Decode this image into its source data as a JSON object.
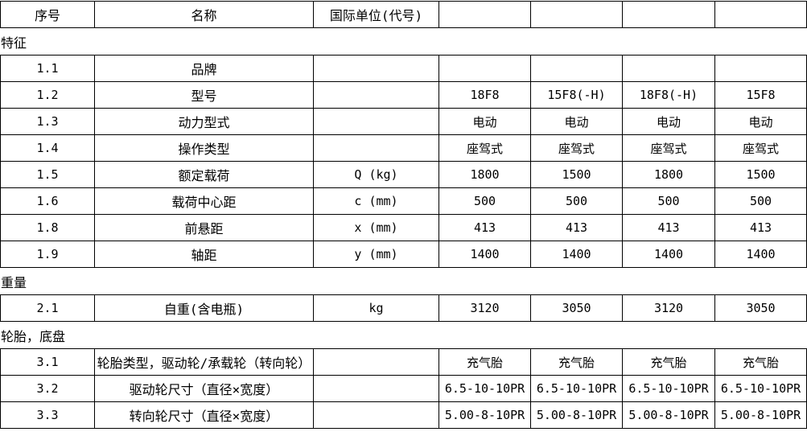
{
  "page": {
    "background_color": "#ffffff",
    "border_color": "#000000",
    "text_color": "#000000"
  },
  "header_table": {
    "columns": [
      "序号",
      "名称",
      "国际单位(代号)",
      "",
      "",
      "",
      ""
    ]
  },
  "sections": [
    {
      "label": "特征",
      "rows": [
        [
          "1.1",
          "品牌",
          "",
          "",
          "",
          "",
          ""
        ],
        [
          "1.2",
          "型号",
          "",
          "18F8",
          "15F8(-H)",
          "18F8(-H)",
          "15F8"
        ],
        [
          "1.3",
          "动力型式",
          "",
          "电动",
          "电动",
          "电动",
          "电动"
        ],
        [
          "1.4",
          "操作类型",
          "",
          "座驾式",
          "座驾式",
          "座驾式",
          "座驾式"
        ],
        [
          "1.5",
          "额定载荷",
          "Q (kg)",
          "1800",
          "1500",
          "1800",
          "1500"
        ],
        [
          "1.6",
          "载荷中心距",
          "c (mm)",
          "500",
          "500",
          "500",
          "500"
        ],
        [
          "1.8",
          "前悬距",
          "x (mm)",
          "413",
          "413",
          "413",
          "413"
        ],
        [
          "1.9",
          "轴距",
          "y (mm)",
          "1400",
          "1400",
          "1400",
          "1400"
        ]
      ]
    },
    {
      "label": "重量",
      "rows": [
        [
          "2.1",
          "自重(含电瓶)",
          "kg",
          "3120",
          "3050",
          "3120",
          "3050"
        ]
      ]
    },
    {
      "label": "轮胎，底盘",
      "rows": [
        [
          "3.1",
          "轮胎类型，驱动轮/承载轮（转向轮）",
          "",
          "充气胎",
          "充气胎",
          "充气胎",
          "充气胎"
        ],
        [
          "3.2",
          "驱动轮尺寸（直径×宽度）",
          "",
          "6.5-10-10PR",
          "6.5-10-10PR",
          "6.5-10-10PR",
          "6.5-10-10PR"
        ],
        [
          "3.3",
          "转向轮尺寸（直径×宽度）",
          "",
          "5.00-8-10PR",
          "5.00-8-10PR",
          "5.00-8-10PR",
          "5.00-8-10PR"
        ]
      ]
    }
  ]
}
